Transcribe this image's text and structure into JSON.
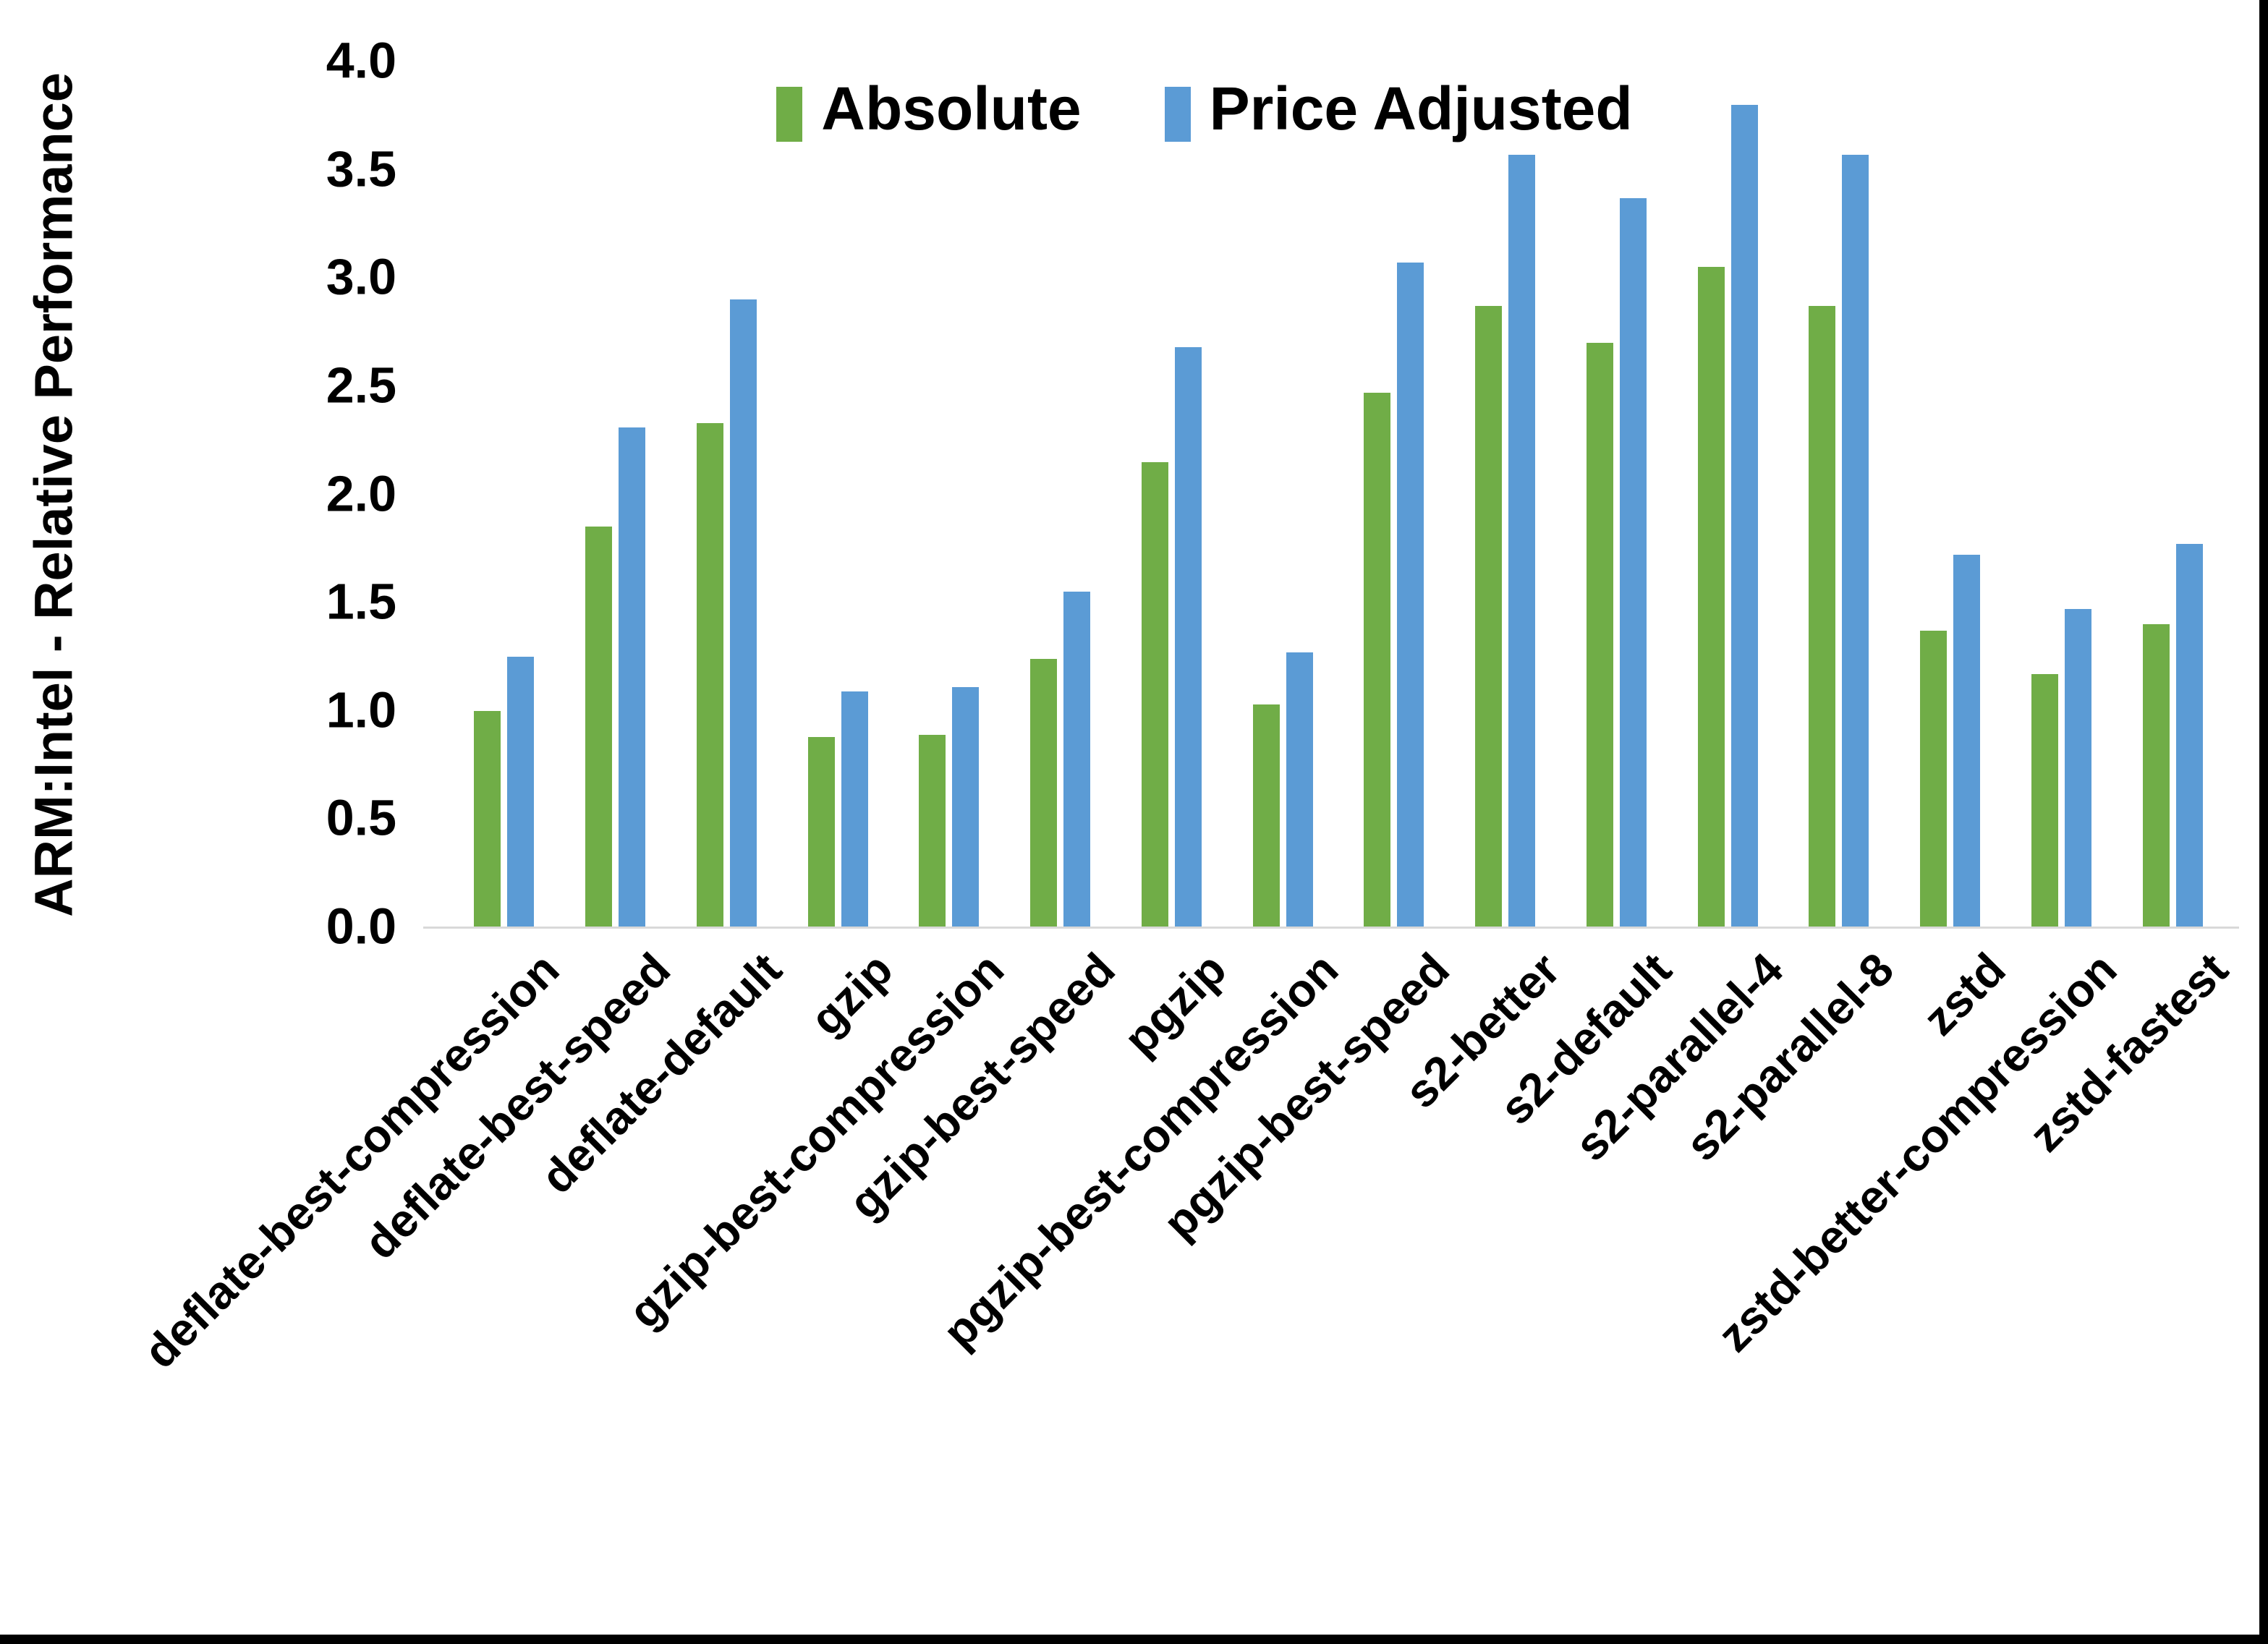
{
  "chart_data": {
    "type": "bar",
    "title": "",
    "ylabel": "ARM:Intel - Relative Performance",
    "xlabel": "",
    "ylim": [
      0.0,
      4.0
    ],
    "ytick_step": 0.5,
    "yticks": [
      "4.0",
      "3.5",
      "3.0",
      "2.5",
      "2.0",
      "1.5",
      "1.0",
      "0.5",
      "0.0"
    ],
    "grid": false,
    "legend_position": "top-center",
    "axis_line_color": "#d9d9d9",
    "categories": [
      "deflate-best-compression",
      "deflate-best-speed",
      "deflate-default",
      "gzip",
      "gzip-best-compression",
      "gzip-best-speed",
      "pgzip",
      "pgzip-best-compression",
      "pgzip-best-speed",
      "s2-better",
      "s2-default",
      "s2-parallel-4",
      "s2-parallel-8",
      "zstd",
      "zstd-better-compression",
      "zstd-fastest"
    ],
    "series": [
      {
        "name": "Absolute",
        "color": "#70AD47",
        "values": [
          1.0,
          1.85,
          2.33,
          0.88,
          0.89,
          1.24,
          2.15,
          1.03,
          2.47,
          2.87,
          2.7,
          3.05,
          2.87,
          1.37,
          1.17,
          1.4
        ]
      },
      {
        "name": "Price Adjusted",
        "color": "#5B9BD5",
        "values": [
          1.25,
          2.31,
          2.9,
          1.09,
          1.11,
          1.55,
          2.68,
          1.27,
          3.07,
          3.57,
          3.37,
          3.8,
          3.57,
          1.72,
          1.47,
          1.77
        ]
      }
    ]
  }
}
